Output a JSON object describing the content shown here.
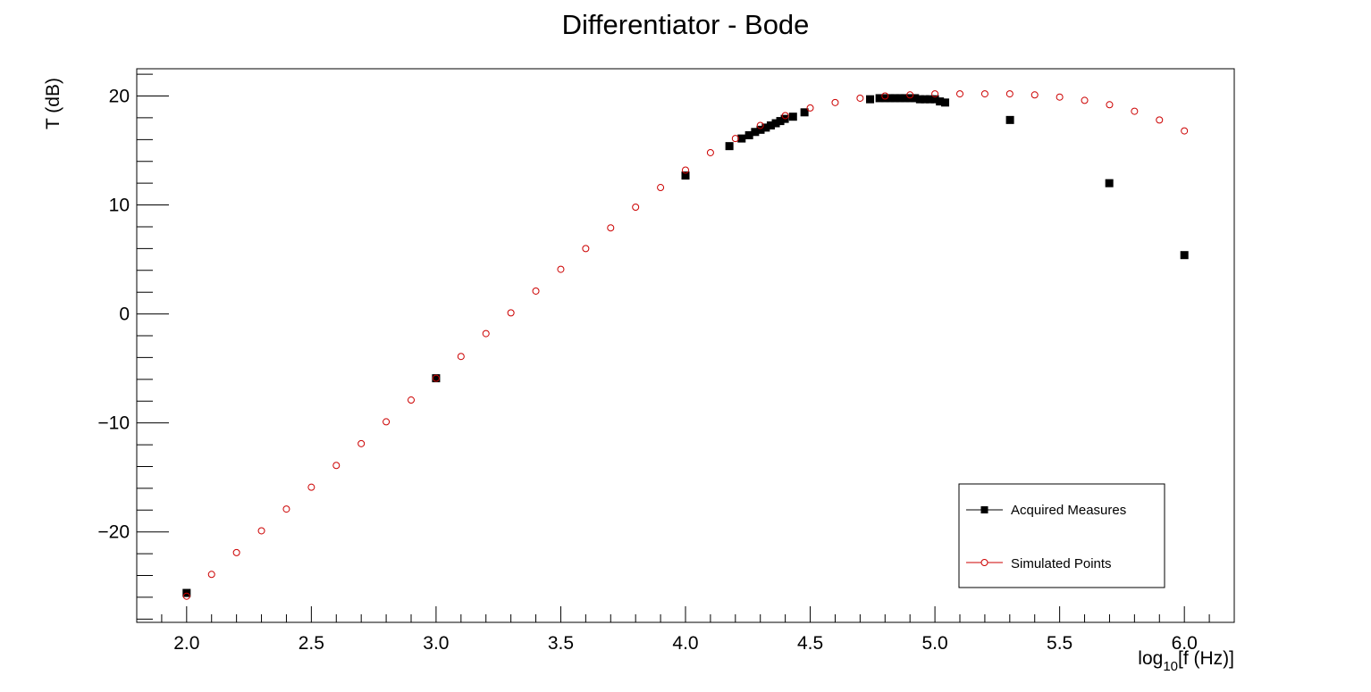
{
  "chart_data": {
    "type": "scatter",
    "title": "Differentiator - Bode",
    "xlabel": {
      "prefix": "log",
      "subscript": "10",
      "suffix": "[f (Hz)]"
    },
    "ylabel": "T (dB)",
    "xlim": [
      1.8,
      6.2
    ],
    "ylim": [
      -28.3,
      22.5
    ],
    "x_ticks": [
      2.0,
      2.5,
      3.0,
      3.5,
      4.0,
      4.5,
      5.0,
      5.5,
      6.0
    ],
    "x_tick_labels": [
      "2.0",
      "2.5",
      "3.0",
      "3.5",
      "4.0",
      "4.5",
      "5.0",
      "5.5",
      "6.0"
    ],
    "y_ticks": [
      -20,
      -10,
      0,
      10,
      20
    ],
    "y_tick_labels": [
      "−20",
      "−10",
      "0",
      "10",
      "20"
    ],
    "grid": false,
    "legend_position": "bottom-right",
    "series": [
      {
        "name": "Acquired Measures",
        "marker": "filled-square",
        "color": "#000000",
        "x": [
          2.0,
          3.0,
          4.0,
          4.176,
          4.225,
          4.255,
          4.279,
          4.301,
          4.322,
          4.342,
          4.362,
          4.38,
          4.398,
          4.431,
          4.477,
          4.74,
          4.778,
          4.8,
          4.82,
          4.84,
          4.86,
          4.88,
          4.9,
          4.92,
          4.94,
          4.96,
          4.98,
          5.0,
          5.02,
          5.041,
          5.301,
          5.699,
          6.0
        ],
        "y": [
          -25.6,
          -5.9,
          12.7,
          15.4,
          16.1,
          16.4,
          16.7,
          16.9,
          17.1,
          17.3,
          17.5,
          17.7,
          17.9,
          18.1,
          18.5,
          19.7,
          19.8,
          19.8,
          19.8,
          19.8,
          19.8,
          19.8,
          19.8,
          19.8,
          19.7,
          19.7,
          19.7,
          19.7,
          19.5,
          19.4,
          17.8,
          12.0,
          5.4
        ]
      },
      {
        "name": "Simulated Points",
        "marker": "open-circle",
        "color": "#cc0000",
        "x": [
          2.0,
          2.1,
          2.2,
          2.3,
          2.4,
          2.5,
          2.6,
          2.7,
          2.8,
          2.9,
          3.0,
          3.1,
          3.2,
          3.3,
          3.4,
          3.5,
          3.6,
          3.7,
          3.8,
          3.9,
          4.0,
          4.1,
          4.2,
          4.3,
          4.4,
          4.5,
          4.6,
          4.7,
          4.8,
          4.9,
          5.0,
          5.1,
          5.2,
          5.3,
          5.4,
          5.5,
          5.6,
          5.7,
          5.8,
          5.9,
          6.0
        ],
        "y": [
          -25.9,
          -23.9,
          -21.9,
          -19.9,
          -17.9,
          -15.9,
          -13.9,
          -11.9,
          -9.9,
          -7.9,
          -5.9,
          -3.9,
          -1.8,
          0.1,
          2.1,
          4.1,
          6.0,
          7.9,
          9.8,
          11.6,
          13.2,
          14.8,
          16.1,
          17.3,
          18.2,
          18.9,
          19.4,
          19.8,
          20.0,
          20.1,
          20.2,
          20.2,
          20.2,
          20.2,
          20.1,
          19.9,
          19.6,
          19.2,
          18.6,
          17.8,
          16.8
        ]
      }
    ]
  }
}
